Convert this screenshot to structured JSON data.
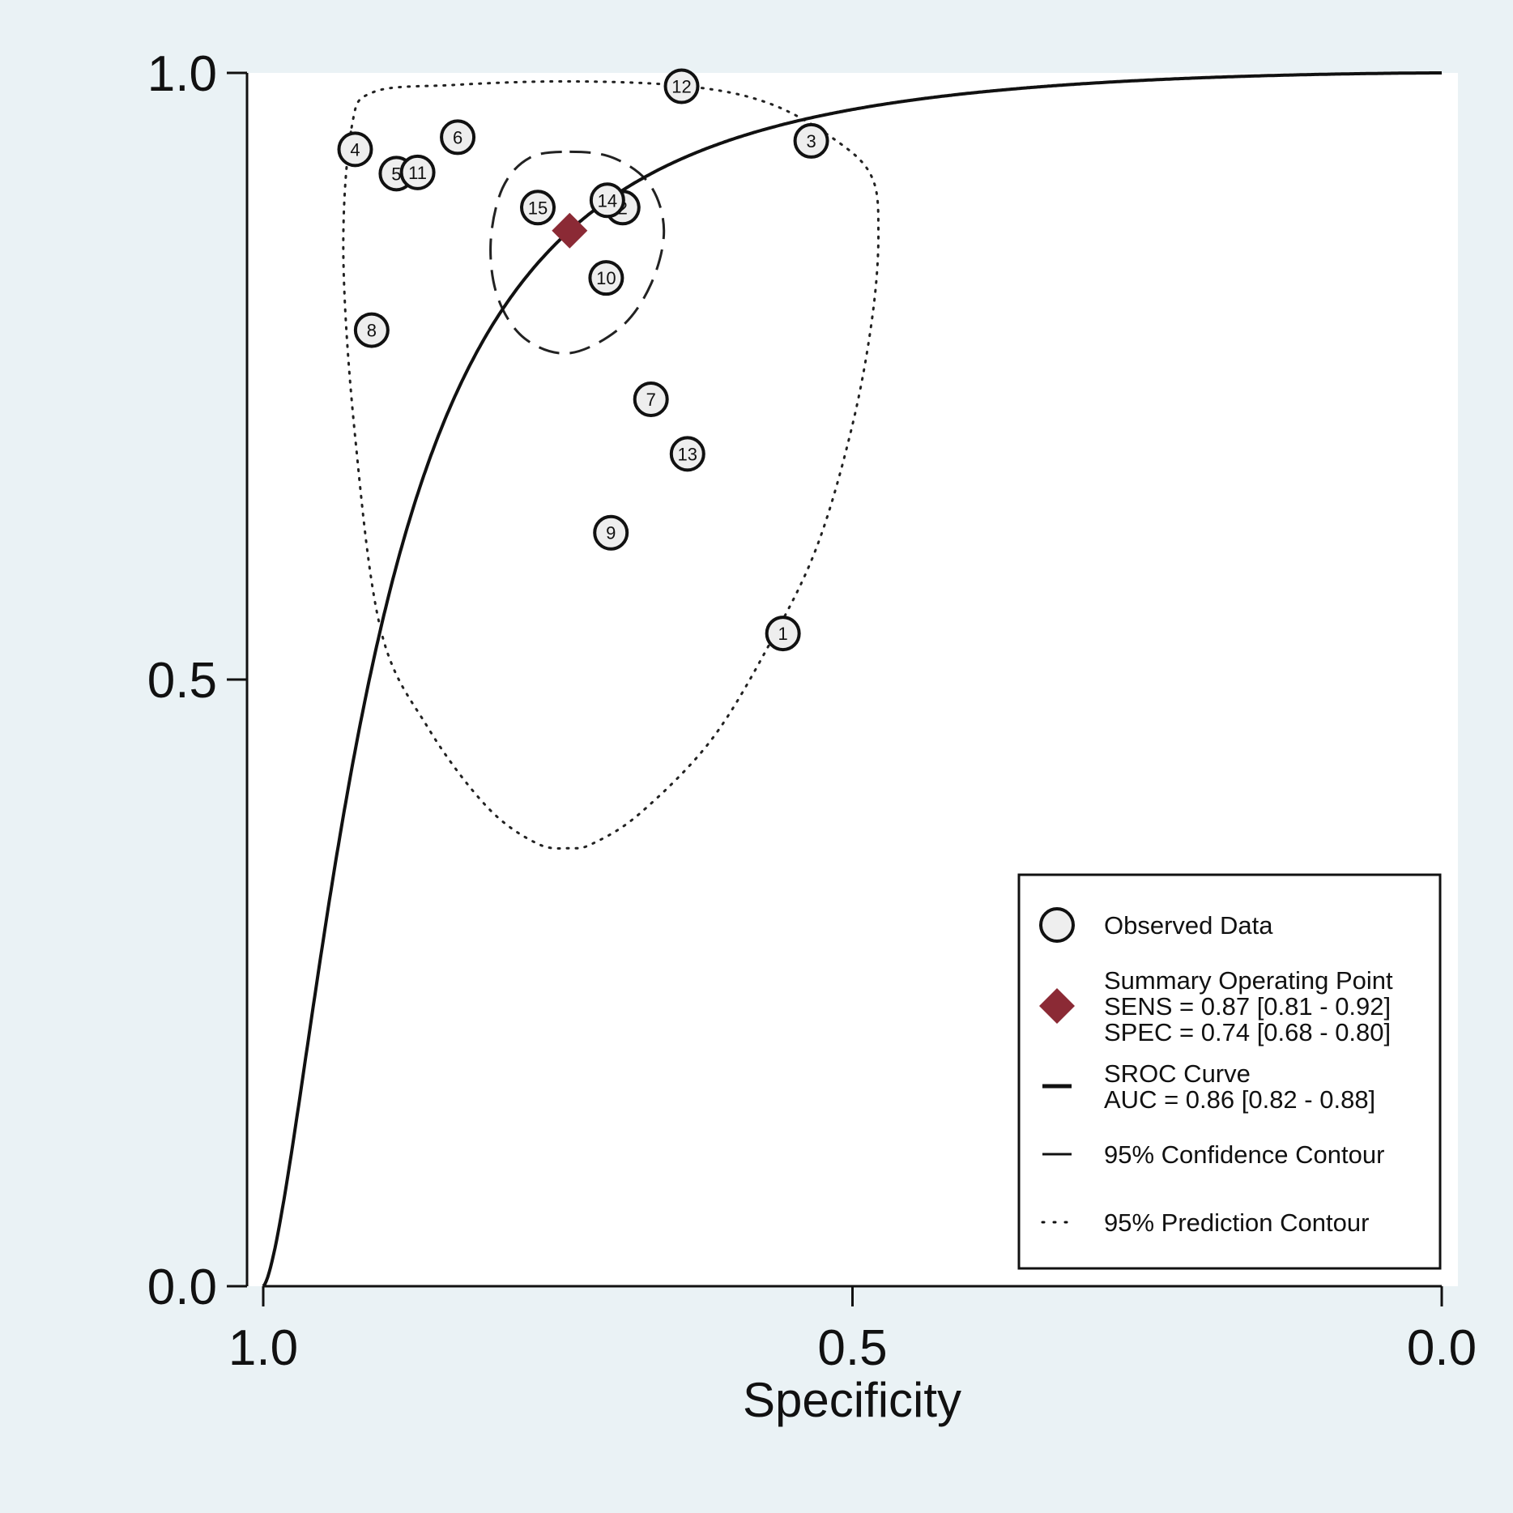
{
  "chart_data": {
    "type": "scatter",
    "xlabel": "Specificity",
    "ylabel": "",
    "xlim": [
      1.0,
      0.0
    ],
    "ylim": [
      0.0,
      1.0
    ],
    "x_reversed": true,
    "grid": false,
    "x_ticks": [
      {
        "value": 1.0,
        "label": "1.0"
      },
      {
        "value": 0.5,
        "label": "0.5"
      },
      {
        "value": 0.0,
        "label": "0.0"
      }
    ],
    "y_ticks": [
      {
        "value": 0.0,
        "label": "0.0"
      },
      {
        "value": 0.5,
        "label": "0.5"
      },
      {
        "value": 1.0,
        "label": "1.0"
      }
    ],
    "observed_data": [
      {
        "label": "1",
        "specificity": 0.559,
        "sensitivity": 0.538
      },
      {
        "label": "2",
        "specificity": 0.695,
        "sensitivity": 0.889
      },
      {
        "label": "3",
        "specificity": 0.535,
        "sensitivity": 0.944
      },
      {
        "label": "4",
        "specificity": 0.922,
        "sensitivity": 0.937
      },
      {
        "label": "5",
        "specificity": 0.887,
        "sensitivity": 0.917
      },
      {
        "label": "6",
        "specificity": 0.835,
        "sensitivity": 0.947
      },
      {
        "label": "7",
        "specificity": 0.671,
        "sensitivity": 0.731
      },
      {
        "label": "8",
        "specificity": 0.908,
        "sensitivity": 0.788
      },
      {
        "label": "9",
        "specificity": 0.705,
        "sensitivity": 0.621
      },
      {
        "label": "10",
        "specificity": 0.709,
        "sensitivity": 0.831
      },
      {
        "label": "11",
        "specificity": 0.869,
        "sensitivity": 0.918
      },
      {
        "label": "12",
        "specificity": 0.645,
        "sensitivity": 0.989
      },
      {
        "label": "13",
        "specificity": 0.64,
        "sensitivity": 0.686
      },
      {
        "label": "14",
        "specificity": 0.708,
        "sensitivity": 0.895
      },
      {
        "label": "15",
        "specificity": 0.767,
        "sensitivity": 0.889
      }
    ],
    "summary_point": {
      "specificity": 0.74,
      "sensitivity": 0.87,
      "color": "#8b2a35"
    },
    "sroc_auc": 0.86,
    "confidence_contour": [
      [
        0.74,
        0.935
      ],
      [
        0.703,
        0.93
      ],
      [
        0.672,
        0.908
      ],
      [
        0.66,
        0.87
      ],
      [
        0.671,
        0.826
      ],
      [
        0.697,
        0.79
      ],
      [
        0.74,
        0.769
      ],
      [
        0.778,
        0.781
      ],
      [
        0.801,
        0.815
      ],
      [
        0.807,
        0.86
      ],
      [
        0.797,
        0.905
      ],
      [
        0.774,
        0.93
      ]
    ],
    "prediction_contour": [
      [
        0.925,
        0.955
      ],
      [
        0.907,
        0.984
      ],
      [
        0.84,
        0.99
      ],
      [
        0.74,
        0.993
      ],
      [
        0.64,
        0.989
      ],
      [
        0.571,
        0.975
      ],
      [
        0.515,
        0.945
      ],
      [
        0.484,
        0.915
      ],
      [
        0.478,
        0.87
      ],
      [
        0.483,
        0.8
      ],
      [
        0.5,
        0.71
      ],
      [
        0.53,
        0.61
      ],
      [
        0.57,
        0.53
      ],
      [
        0.62,
        0.45
      ],
      [
        0.68,
        0.39
      ],
      [
        0.72,
        0.365
      ],
      [
        0.74,
        0.361
      ],
      [
        0.768,
        0.365
      ],
      [
        0.81,
        0.395
      ],
      [
        0.86,
        0.46
      ],
      [
        0.9,
        0.54
      ],
      [
        0.922,
        0.7
      ],
      [
        0.932,
        0.85
      ]
    ],
    "legend": {
      "position": "bottom-right",
      "items": [
        {
          "symbol": "circle",
          "lines": [
            "Observed Data"
          ]
        },
        {
          "symbol": "diamond",
          "lines": [
            "Summary Operating Point",
            "SENS = 0.87 [0.81 - 0.92]",
            "SPEC = 0.74 [0.68 - 0.80]"
          ]
        },
        {
          "symbol": "solid-line",
          "lines": [
            "SROC Curve",
            "AUC = 0.86 [0.82 - 0.88]"
          ]
        },
        {
          "symbol": "dashed-line",
          "lines": [
            "95% Confidence Contour"
          ]
        },
        {
          "symbol": "dotted-line",
          "lines": [
            "95% Prediction Contour"
          ]
        }
      ]
    }
  }
}
